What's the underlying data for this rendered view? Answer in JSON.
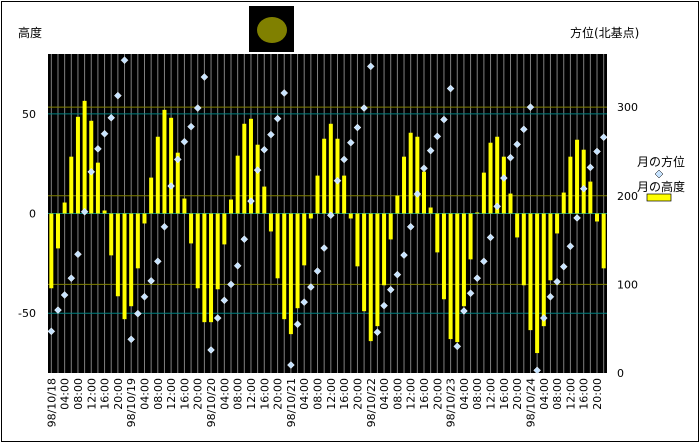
{
  "chart_data": {
    "type": "bar+scatter",
    "left_axis_label": "高度",
    "right_axis_label": "方位(北基点)",
    "left_ylim": [
      -80,
      80
    ],
    "left_ticks": [
      "50",
      "0",
      "-50"
    ],
    "left_tick_values": [
      50,
      0,
      -50
    ],
    "right_ylim": [
      0,
      360
    ],
    "right_ticks": [
      "300",
      "200",
      "100",
      "0"
    ],
    "right_tick_values": [
      300,
      200,
      100,
      0
    ],
    "x_tick_labels": [
      "98/10/18",
      "04:00",
      "08:00",
      "12:00",
      "16:00",
      "20:00",
      "98/10/19",
      "04:00",
      "08:00",
      "12:00",
      "16:00",
      "20:00",
      "98/10/20",
      "04:00",
      "08:00",
      "12:00",
      "16:00",
      "20:00",
      "98/10/21",
      "04:00",
      "08:00",
      "12:00",
      "16:00",
      "20:00",
      "98/10/22",
      "04:00",
      "08:00",
      "12:00",
      "16:00",
      "20:00",
      "98/10/23",
      "04:00",
      "08:00",
      "12:00",
      "16:00",
      "20:00",
      "98/10/24",
      "04:00",
      "08:00",
      "12:00",
      "16:00",
      "20:00"
    ],
    "legend_position": "right",
    "background_color": "#000000",
    "series": [
      {
        "name": "月の方位",
        "type": "scatter",
        "axis": "right",
        "marker": "diamond",
        "color": "#c8e4ff",
        "values": [
          47,
          71,
          88,
          107,
          134,
          182,
          227,
          253,
          270,
          288,
          313,
          353,
          38,
          67,
          86,
          104,
          126,
          165,
          211,
          241,
          261,
          278,
          299,
          334,
          26,
          62,
          82,
          100,
          121,
          151,
          194,
          229,
          252,
          269,
          287,
          316,
          9,
          55,
          80,
          97,
          115,
          141,
          178,
          217,
          241,
          260,
          277,
          299,
          346,
          46,
          76,
          94,
          111,
          133,
          165,
          202,
          231,
          251,
          267,
          286,
          321,
          30,
          70,
          90,
          107,
          126,
          153,
          188,
          220,
          243,
          258,
          275,
          300,
          3,
          62,
          86,
          103,
          120,
          143,
          175,
          208,
          232,
          250,
          266
        ]
      },
      {
        "name": "月の高度",
        "type": "bar",
        "axis": "left",
        "color": "#ffff00",
        "values": [
          -37.5,
          -17.5,
          5.5,
          28.5,
          48.5,
          56.5,
          46.5,
          25.5,
          1.5,
          -21,
          -41.5,
          -53,
          -46.5,
          -27.5,
          -5,
          18,
          38.5,
          52,
          48,
          30.5,
          7.5,
          -15,
          -37.5,
          -54.5,
          -54.5,
          -38,
          -15.5,
          7,
          29,
          45,
          47.5,
          34.5,
          13.5,
          -9,
          -32.5,
          -53,
          -60.5,
          -47.5,
          -26,
          -2.5,
          19,
          37.5,
          45,
          37.5,
          19,
          -2.5,
          -26.5,
          -49,
          -64,
          -56.5,
          -36,
          -13,
          9,
          28.5,
          40.5,
          38.5,
          21,
          3,
          -19.5,
          -43,
          -63,
          -64.5,
          -46.5,
          -23,
          0.5,
          20.5,
          35.5,
          38.5,
          28.5,
          10,
          -12,
          -36,
          -58.5,
          -70,
          -56.5,
          -33.5,
          -10,
          10.5,
          28.5,
          37,
          32,
          16,
          -4,
          -27.5
        ]
      }
    ],
    "gridlines": {
      "left_axis_color": "#008080",
      "right_axis_color": "#808000",
      "vertical_color": "#808080"
    }
  },
  "moon_icon": {
    "disk_color": "#808000",
    "background": "#000000"
  }
}
